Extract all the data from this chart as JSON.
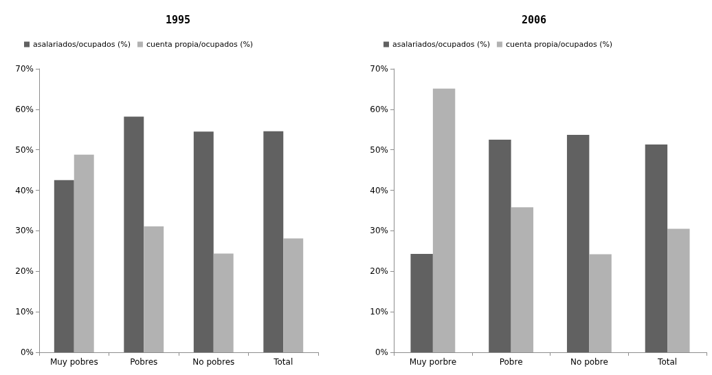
{
  "chart_data": [
    {
      "type": "bar",
      "title": "1995",
      "categories": [
        "Muy pobres",
        "Pobres",
        "No pobres",
        "Total"
      ],
      "series": [
        {
          "name": "asalariados/ocupados (%)",
          "color": "#616161",
          "values": [
            42.5,
            58.2,
            54.5,
            54.6
          ]
        },
        {
          "name": "cuenta propia/ocupados (%)",
          "color": "#b2b2b2",
          "values": [
            48.8,
            31.1,
            24.4,
            28.1
          ]
        }
      ],
      "ylim": [
        0,
        70
      ],
      "yticks": [
        {
          "value": 0,
          "label": "0%"
        },
        {
          "value": 10,
          "label": "10%"
        },
        {
          "value": 20,
          "label": "20%"
        },
        {
          "value": 30,
          "label": "30%"
        },
        {
          "value": 40,
          "label": "40%"
        },
        {
          "value": 50,
          "label": "50%"
        },
        {
          "value": 60,
          "label": "60%"
        },
        {
          "value": 70,
          "label": "70%"
        }
      ],
      "grid": false,
      "legend": "top left"
    },
    {
      "type": "bar",
      "title": "2006",
      "categories": [
        "Muy porbre",
        "Pobre",
        "No pobre",
        "Total"
      ],
      "series": [
        {
          "name": "asalariados/ocupados (%)",
          "color": "#616161",
          "values": [
            24.3,
            52.5,
            53.7,
            51.3
          ]
        },
        {
          "name": "cuenta propia/ocupados (%)",
          "color": "#b2b2b2",
          "values": [
            65.1,
            35.8,
            24.2,
            30.5
          ]
        }
      ],
      "ylim": [
        0,
        70
      ],
      "yticks": [
        {
          "value": 0,
          "label": "0%"
        },
        {
          "value": 10,
          "label": "10%"
        },
        {
          "value": 20,
          "label": "20%"
        },
        {
          "value": 30,
          "label": "30%"
        },
        {
          "value": 40,
          "label": "40%"
        },
        {
          "value": 50,
          "label": "50%"
        },
        {
          "value": 60,
          "label": "60%"
        },
        {
          "value": 70,
          "label": "70%"
        }
      ],
      "grid": false,
      "legend": "top left"
    }
  ]
}
